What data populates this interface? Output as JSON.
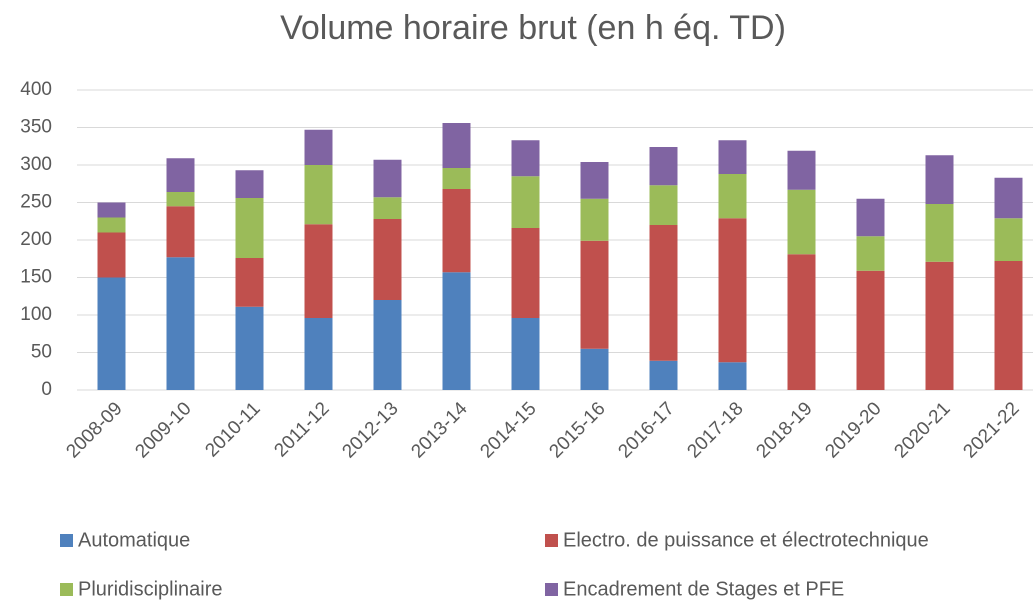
{
  "chart_data": {
    "type": "stacked_bar",
    "title": "Volume horaire brut (en h éq. TD)",
    "categories": [
      "2008-09",
      "2009-10",
      "2010-11",
      "2011-12",
      "2012-13",
      "2013-14",
      "2014-15",
      "2015-16",
      "2016-17",
      "2017-18",
      "2018-19",
      "2019-20",
      "2020-21",
      "2021-22"
    ],
    "series": [
      {
        "name": "Automatique",
        "color": "#4f81bd",
        "values": [
          150,
          177,
          111,
          96,
          120,
          157,
          96,
          55,
          39,
          37,
          0,
          0,
          0,
          0
        ]
      },
      {
        "name": "Electro. de puissance et électrotechnique",
        "color": "#c0504d",
        "values": [
          60,
          68,
          65,
          125,
          108,
          111,
          120,
          144,
          181,
          192,
          181,
          159,
          171,
          172
        ]
      },
      {
        "name": "Pluridisciplinaire",
        "color": "#9bbb59",
        "values": [
          20,
          19,
          80,
          79,
          29,
          28,
          69,
          56,
          53,
          59,
          86,
          46,
          77,
          57
        ]
      },
      {
        "name": "Encadrement de Stages et PFE",
        "color": "#8064a2",
        "values": [
          20,
          45,
          37,
          47,
          50,
          60,
          48,
          49,
          51,
          45,
          52,
          50,
          65,
          54
        ]
      }
    ],
    "ylim": [
      0,
      400
    ],
    "yticks": [
      0,
      50,
      100,
      150,
      200,
      250,
      300,
      350,
      400
    ],
    "grid": true
  }
}
